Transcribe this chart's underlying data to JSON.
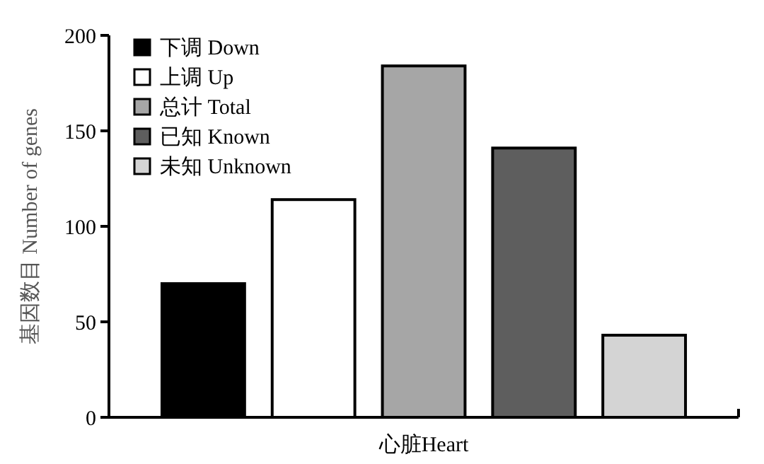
{
  "chart_data": {
    "type": "bar",
    "ylabel": "基因数目 Number of genes",
    "categories": [
      "心脏Heart"
    ],
    "series": [
      {
        "name": "下调 Down",
        "color": "#000000",
        "values": [
          70
        ]
      },
      {
        "name": "上调 Up",
        "color": "#ffffff",
        "values": [
          114
        ]
      },
      {
        "name": "总计 Total",
        "color": "#a6a6a6",
        "values": [
          184
        ]
      },
      {
        "name": "已知 Known",
        "color": "#5e5e5e",
        "values": [
          141
        ]
      },
      {
        "name": "未知 Unknown",
        "color": "#d4d4d4",
        "values": [
          43
        ]
      }
    ],
    "ylim": [
      0,
      200
    ],
    "yticks": [
      0,
      50,
      100,
      150,
      200
    ],
    "legend": "top left",
    "grid": false
  }
}
